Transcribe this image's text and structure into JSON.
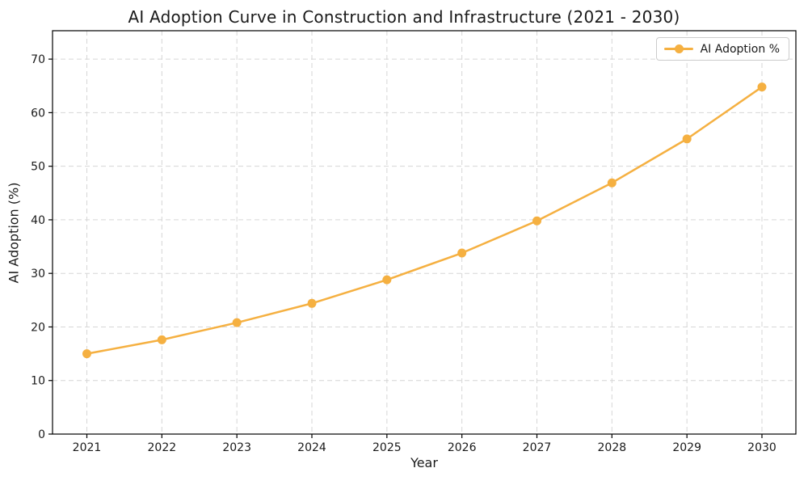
{
  "chart_data": {
    "type": "line",
    "title": "AI Adoption Curve in Construction and Infrastructure (2021 - 2030)",
    "xlabel": "Year",
    "ylabel": "AI Adoption (%)",
    "x": [
      2021,
      2022,
      2023,
      2024,
      2025,
      2026,
      2027,
      2028,
      2029,
      2030
    ],
    "series": [
      {
        "name": "AI Adoption %",
        "values": [
          15.0,
          17.6,
          20.8,
          24.4,
          28.8,
          33.8,
          39.8,
          46.9,
          55.1,
          64.8
        ],
        "color": "#F5B041",
        "marker": "circle",
        "line_width": 2.5,
        "marker_radius": 5.5
      }
    ],
    "ylim": [
      0,
      75.3
    ],
    "yticks": [
      0,
      10,
      20,
      30,
      40,
      50,
      60,
      70
    ],
    "grid": true,
    "grid_style": "dashed",
    "grid_color": "#d6d6d6",
    "spine_color": "#000000",
    "tick_label_color": "#1a1a1a",
    "legend_position": "upper right"
  }
}
